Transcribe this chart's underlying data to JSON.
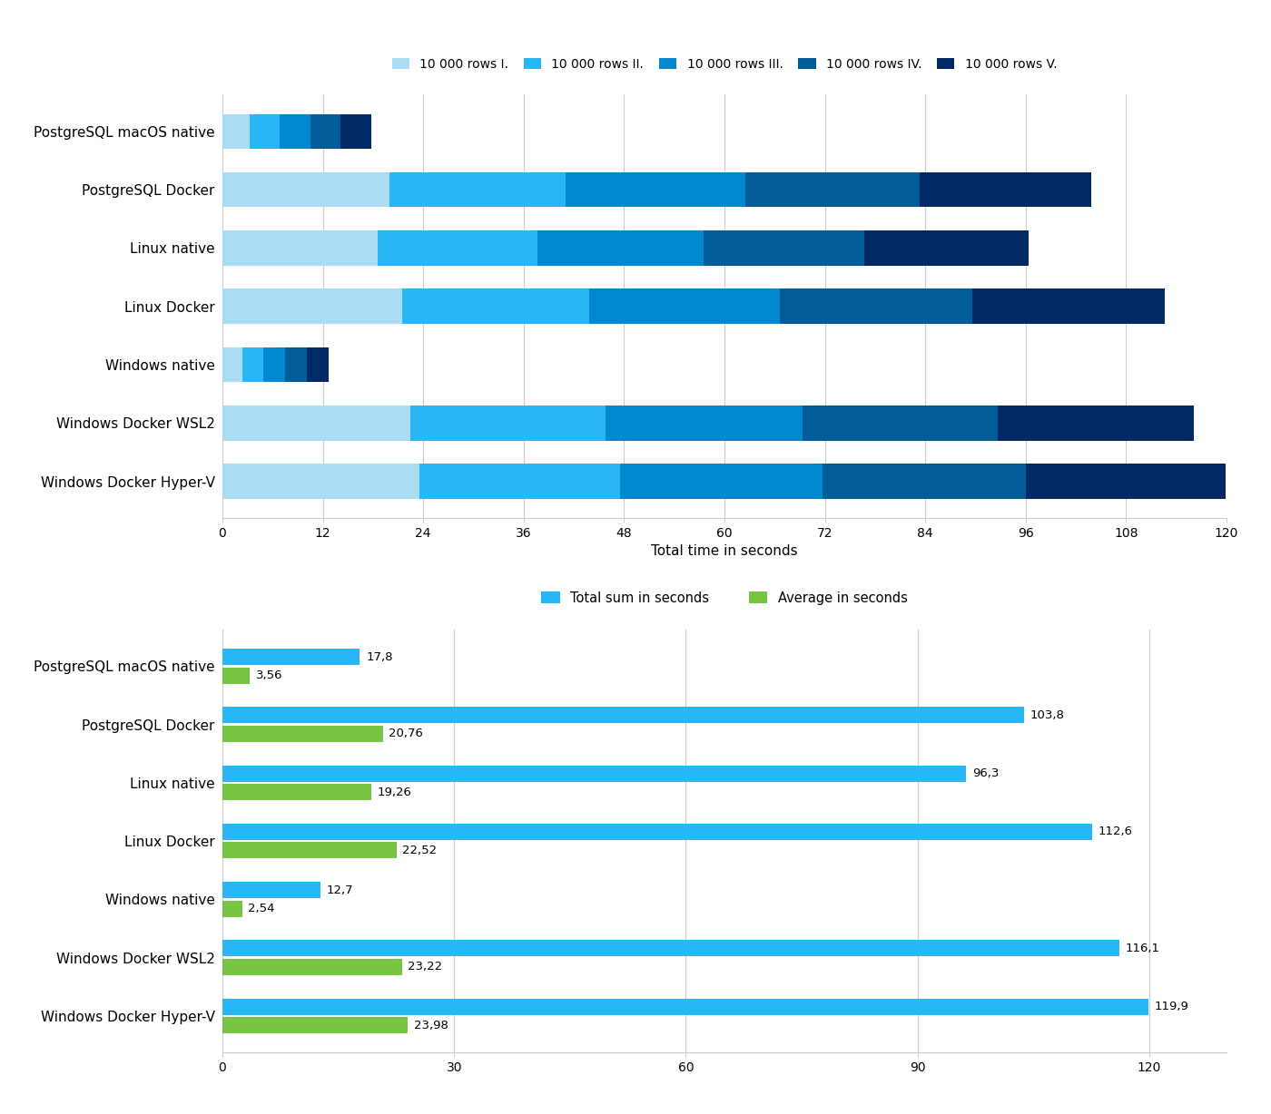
{
  "categories": [
    "PostgreSQL macOS native",
    "PostgreSQL Docker",
    "Linux native",
    "Linux Docker",
    "Windows native",
    "Windows Docker WSL2",
    "Windows Docker Hyper-V"
  ],
  "runs": {
    "PostgreSQL macOS native": [
      3.3,
      3.5,
      3.7,
      3.6,
      3.7
    ],
    "PostgreSQL Docker": [
      20.0,
      21.0,
      21.5,
      20.8,
      20.5
    ],
    "Linux native": [
      18.5,
      19.2,
      19.8,
      19.2,
      19.6
    ],
    "Linux Docker": [
      21.5,
      22.3,
      22.8,
      23.0,
      23.0
    ],
    "Windows native": [
      2.4,
      2.5,
      2.6,
      2.6,
      2.6
    ],
    "Windows Docker WSL2": [
      22.5,
      23.3,
      23.5,
      23.4,
      23.4
    ],
    "Windows Docker Hyper-V": [
      23.5,
      24.0,
      24.2,
      24.3,
      23.9
    ]
  },
  "totals": [
    17.8,
    103.8,
    96.3,
    112.6,
    12.7,
    116.1,
    119.9
  ],
  "averages": [
    3.56,
    20.76,
    19.26,
    22.52,
    2.54,
    23.22,
    23.98
  ],
  "run_colors": [
    "#AADCF5",
    "#29B6F6",
    "#0288D1",
    "#015C99",
    "#002966"
  ],
  "legend_labels": [
    "10 000 rows I.",
    "10 000 rows II.",
    "10 000 rows III.",
    "10 000 rows IV.",
    "10 000 rows V."
  ],
  "total_color": "#29B6F6",
  "avg_color": "#76C442",
  "xlabel_top": "Total time in seconds",
  "xticks_top": [
    0,
    12,
    24,
    36,
    48,
    60,
    72,
    84,
    96,
    108,
    120
  ],
  "xticks_bottom": [
    0,
    30,
    60,
    90,
    120
  ],
  "background_color": "#FFFFFF",
  "grid_color": "#CCCCCC"
}
